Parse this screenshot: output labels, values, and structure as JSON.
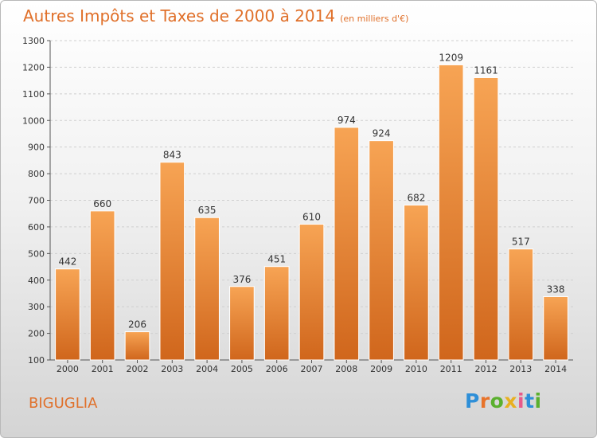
{
  "title": {
    "main": "Autres Impôts et Taxes de 2000 à 2014",
    "unit": "(en milliers d'€)"
  },
  "commune": "BIGUGLIA",
  "logo": {
    "text": "Proxiti",
    "letters": [
      {
        "char": "P",
        "color": "#2e8fd8"
      },
      {
        "char": "r",
        "color": "#e8732a"
      },
      {
        "char": "o",
        "color": "#5ab02e"
      },
      {
        "char": "x",
        "color": "#e8b020"
      },
      {
        "char": "i",
        "color": "#e85a8a"
      },
      {
        "char": "t",
        "color": "#2e8fd8"
      },
      {
        "char": "i",
        "color": "#5ab02e"
      }
    ]
  },
  "colors": {
    "accent": "#e0702a",
    "bar_top": "#f7a454",
    "bar_bottom": "#d0661c",
    "grid": "#cfcfcf"
  },
  "chart_data": {
    "type": "bar",
    "categories": [
      "2000",
      "2001",
      "2002",
      "2003",
      "2004",
      "2005",
      "2006",
      "2007",
      "2008",
      "2009",
      "2010",
      "2011",
      "2012",
      "2013",
      "2014"
    ],
    "values": [
      442,
      660,
      206,
      843,
      635,
      376,
      451,
      610,
      974,
      924,
      682,
      1209,
      1161,
      517,
      338
    ],
    "ylim": [
      100,
      1300
    ],
    "yticks": [
      100,
      200,
      300,
      400,
      500,
      600,
      700,
      800,
      900,
      1000,
      1100,
      1200,
      1300
    ],
    "grid": true,
    "data_labels": true
  }
}
